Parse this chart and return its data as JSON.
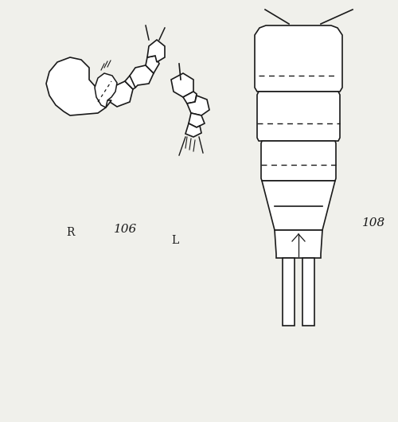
{
  "background_color": "#f0f0eb",
  "line_color": "#1a1a1a",
  "label_106": "106",
  "label_108": "108",
  "label_R": "R",
  "label_L": "L",
  "label_fontsize": 11,
  "figsize": [
    5.0,
    5.3
  ],
  "dpi": 100
}
